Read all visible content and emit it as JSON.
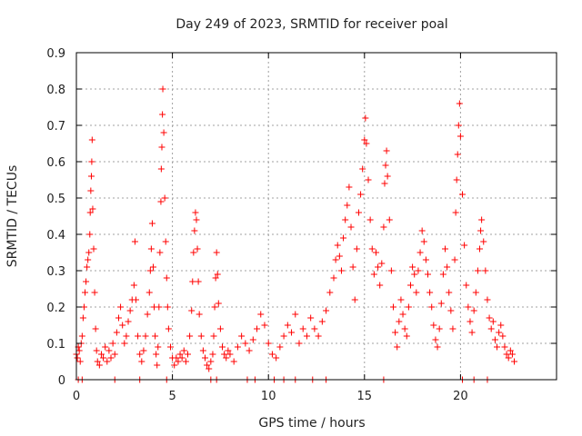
{
  "chart_data": {
    "type": "scatter",
    "title": "Day 249 of 2023, SRMTID for receiver poal",
    "xlabel": "GPS time / hours",
    "ylabel": "SRMTID / TECUs",
    "xlim": [
      0,
      25
    ],
    "ylim": [
      0,
      0.9
    ],
    "xticks": [
      0,
      5,
      10,
      15,
      20
    ],
    "yticks": [
      0,
      0.1,
      0.2,
      0.3,
      0.4,
      0.5,
      0.6,
      0.7,
      0.8,
      0.9
    ],
    "xtick_labels": [
      "0",
      "5",
      "10",
      "15",
      "20"
    ],
    "ytick_labels": [
      "0",
      "0.1",
      "0.2",
      "0.3",
      "0.4",
      "0.5",
      "0.6",
      "0.7",
      "0.8",
      "0.9"
    ],
    "grid": true,
    "marker": "+",
    "color": "#ff0000",
    "series": [
      {
        "name": "SRMTID",
        "points": [
          [
            0.0,
            0.07
          ],
          [
            0.05,
            0.06
          ],
          [
            0.1,
            0.09
          ],
          [
            0.15,
            0.08
          ],
          [
            0.2,
            0.05
          ],
          [
            0.25,
            0.1
          ],
          [
            0.3,
            0.12
          ],
          [
            0.35,
            0.17
          ],
          [
            0.4,
            0.2
          ],
          [
            0.45,
            0.24
          ],
          [
            0.5,
            0.27
          ],
          [
            0.55,
            0.31
          ],
          [
            0.6,
            0.33
          ],
          [
            0.65,
            0.35
          ],
          [
            0.7,
            0.4
          ],
          [
            0.72,
            0.46
          ],
          [
            0.75,
            0.52
          ],
          [
            0.78,
            0.56
          ],
          [
            0.8,
            0.6
          ],
          [
            0.82,
            0.66
          ],
          [
            0.85,
            0.47
          ],
          [
            0.9,
            0.36
          ],
          [
            0.95,
            0.24
          ],
          [
            1.0,
            0.14
          ],
          [
            1.05,
            0.08
          ],
          [
            1.1,
            0.05
          ],
          [
            1.2,
            0.04
          ],
          [
            1.3,
            0.07
          ],
          [
            1.4,
            0.06
          ],
          [
            1.5,
            0.09
          ],
          [
            1.6,
            0.05
          ],
          [
            1.7,
            0.08
          ],
          [
            1.8,
            0.06
          ],
          [
            1.9,
            0.1
          ],
          [
            2.0,
            0.07
          ],
          [
            2.1,
            0.13
          ],
          [
            2.2,
            0.17
          ],
          [
            2.3,
            0.2
          ],
          [
            2.4,
            0.15
          ],
          [
            2.5,
            0.1
          ],
          [
            2.6,
            0.12
          ],
          [
            2.7,
            0.16
          ],
          [
            2.8,
            0.19
          ],
          [
            2.9,
            0.22
          ],
          [
            3.0,
            0.26
          ],
          [
            3.05,
            0.38
          ],
          [
            3.1,
            0.22
          ],
          [
            3.2,
            0.12
          ],
          [
            3.3,
            0.07
          ],
          [
            3.4,
            0.05
          ],
          [
            3.5,
            0.08
          ],
          [
            3.6,
            0.12
          ],
          [
            3.7,
            0.18
          ],
          [
            3.8,
            0.24
          ],
          [
            3.85,
            0.3
          ],
          [
            3.9,
            0.36
          ],
          [
            3.95,
            0.43
          ],
          [
            4.0,
            0.31
          ],
          [
            4.05,
            0.2
          ],
          [
            4.1,
            0.12
          ],
          [
            4.15,
            0.07
          ],
          [
            4.2,
            0.04
          ],
          [
            4.25,
            0.09
          ],
          [
            4.3,
            0.2
          ],
          [
            4.35,
            0.35
          ],
          [
            4.4,
            0.49
          ],
          [
            4.42,
            0.58
          ],
          [
            4.45,
            0.64
          ],
          [
            4.48,
            0.73
          ],
          [
            4.5,
            0.8
          ],
          [
            4.55,
            0.68
          ],
          [
            4.6,
            0.5
          ],
          [
            4.65,
            0.38
          ],
          [
            4.7,
            0.28
          ],
          [
            4.75,
            0.2
          ],
          [
            4.8,
            0.14
          ],
          [
            4.9,
            0.09
          ],
          [
            5.0,
            0.06
          ],
          [
            5.1,
            0.04
          ],
          [
            5.2,
            0.06
          ],
          [
            5.3,
            0.05
          ],
          [
            5.4,
            0.07
          ],
          [
            5.5,
            0.06
          ],
          [
            5.6,
            0.08
          ],
          [
            5.7,
            0.05
          ],
          [
            5.8,
            0.07
          ],
          [
            5.9,
            0.12
          ],
          [
            6.0,
            0.19
          ],
          [
            6.05,
            0.27
          ],
          [
            6.1,
            0.35
          ],
          [
            6.15,
            0.41
          ],
          [
            6.2,
            0.46
          ],
          [
            6.25,
            0.44
          ],
          [
            6.3,
            0.36
          ],
          [
            6.35,
            0.27
          ],
          [
            6.4,
            0.18
          ],
          [
            6.5,
            0.12
          ],
          [
            6.6,
            0.08
          ],
          [
            6.7,
            0.06
          ],
          [
            6.8,
            0.04
          ],
          [
            6.9,
            0.03
          ],
          [
            7.0,
            0.05
          ],
          [
            7.1,
            0.07
          ],
          [
            7.15,
            0.12
          ],
          [
            7.2,
            0.2
          ],
          [
            7.25,
            0.28
          ],
          [
            7.3,
            0.35
          ],
          [
            7.35,
            0.29
          ],
          [
            7.4,
            0.21
          ],
          [
            7.5,
            0.14
          ],
          [
            7.6,
            0.09
          ],
          [
            7.7,
            0.07
          ],
          [
            7.8,
            0.06
          ],
          [
            7.9,
            0.08
          ],
          [
            8.0,
            0.07
          ],
          [
            8.2,
            0.05
          ],
          [
            8.4,
            0.09
          ],
          [
            8.6,
            0.12
          ],
          [
            8.8,
            0.1
          ],
          [
            9.0,
            0.08
          ],
          [
            9.2,
            0.11
          ],
          [
            9.4,
            0.14
          ],
          [
            9.6,
            0.18
          ],
          [
            9.8,
            0.15
          ],
          [
            10.0,
            0.1
          ],
          [
            10.2,
            0.07
          ],
          [
            10.4,
            0.06
          ],
          [
            10.6,
            0.09
          ],
          [
            10.8,
            0.12
          ],
          [
            11.0,
            0.15
          ],
          [
            11.2,
            0.13
          ],
          [
            11.4,
            0.18
          ],
          [
            11.6,
            0.1
          ],
          [
            11.8,
            0.14
          ],
          [
            12.0,
            0.12
          ],
          [
            12.2,
            0.17
          ],
          [
            12.4,
            0.14
          ],
          [
            12.6,
            0.12
          ],
          [
            12.8,
            0.16
          ],
          [
            13.0,
            0.19
          ],
          [
            13.2,
            0.24
          ],
          [
            13.4,
            0.28
          ],
          [
            13.5,
            0.33
          ],
          [
            13.6,
            0.37
          ],
          [
            13.7,
            0.34
          ],
          [
            13.8,
            0.3
          ],
          [
            13.9,
            0.39
          ],
          [
            14.0,
            0.44
          ],
          [
            14.1,
            0.48
          ],
          [
            14.2,
            0.53
          ],
          [
            14.3,
            0.42
          ],
          [
            14.4,
            0.31
          ],
          [
            14.5,
            0.22
          ],
          [
            14.6,
            0.36
          ],
          [
            14.7,
            0.46
          ],
          [
            14.8,
            0.51
          ],
          [
            14.9,
            0.58
          ],
          [
            15.0,
            0.66
          ],
          [
            15.05,
            0.72
          ],
          [
            15.1,
            0.65
          ],
          [
            15.2,
            0.55
          ],
          [
            15.3,
            0.44
          ],
          [
            15.4,
            0.36
          ],
          [
            15.5,
            0.29
          ],
          [
            15.6,
            0.35
          ],
          [
            15.7,
            0.31
          ],
          [
            15.8,
            0.26
          ],
          [
            15.9,
            0.32
          ],
          [
            16.0,
            0.42
          ],
          [
            16.05,
            0.54
          ],
          [
            16.1,
            0.59
          ],
          [
            16.15,
            0.63
          ],
          [
            16.2,
            0.56
          ],
          [
            16.3,
            0.44
          ],
          [
            16.4,
            0.3
          ],
          [
            16.5,
            0.2
          ],
          [
            16.6,
            0.13
          ],
          [
            16.7,
            0.09
          ],
          [
            16.8,
            0.16
          ],
          [
            16.9,
            0.22
          ],
          [
            17.0,
            0.18
          ],
          [
            17.1,
            0.14
          ],
          [
            17.2,
            0.12
          ],
          [
            17.3,
            0.2
          ],
          [
            17.4,
            0.26
          ],
          [
            17.5,
            0.31
          ],
          [
            17.6,
            0.29
          ],
          [
            17.7,
            0.24
          ],
          [
            17.8,
            0.3
          ],
          [
            17.9,
            0.35
          ],
          [
            18.0,
            0.41
          ],
          [
            18.1,
            0.38
          ],
          [
            18.2,
            0.33
          ],
          [
            18.3,
            0.29
          ],
          [
            18.4,
            0.24
          ],
          [
            18.5,
            0.2
          ],
          [
            18.6,
            0.15
          ],
          [
            18.7,
            0.11
          ],
          [
            18.8,
            0.09
          ],
          [
            18.9,
            0.14
          ],
          [
            19.0,
            0.21
          ],
          [
            19.1,
            0.29
          ],
          [
            19.2,
            0.36
          ],
          [
            19.3,
            0.31
          ],
          [
            19.4,
            0.24
          ],
          [
            19.5,
            0.19
          ],
          [
            19.6,
            0.14
          ],
          [
            19.7,
            0.33
          ],
          [
            19.75,
            0.46
          ],
          [
            19.8,
            0.55
          ],
          [
            19.85,
            0.62
          ],
          [
            19.9,
            0.7
          ],
          [
            19.95,
            0.76
          ],
          [
            20.0,
            0.67
          ],
          [
            20.1,
            0.51
          ],
          [
            20.2,
            0.37
          ],
          [
            20.3,
            0.26
          ],
          [
            20.4,
            0.2
          ],
          [
            20.5,
            0.16
          ],
          [
            20.6,
            0.13
          ],
          [
            20.7,
            0.19
          ],
          [
            20.8,
            0.24
          ],
          [
            20.9,
            0.3
          ],
          [
            21.0,
            0.36
          ],
          [
            21.05,
            0.41
          ],
          [
            21.1,
            0.44
          ],
          [
            21.2,
            0.38
          ],
          [
            21.3,
            0.3
          ],
          [
            21.4,
            0.22
          ],
          [
            21.5,
            0.17
          ],
          [
            21.6,
            0.14
          ],
          [
            21.7,
            0.16
          ],
          [
            21.8,
            0.11
          ],
          [
            21.9,
            0.09
          ],
          [
            22.0,
            0.13
          ],
          [
            22.1,
            0.15
          ],
          [
            22.2,
            0.12
          ],
          [
            22.3,
            0.09
          ],
          [
            22.4,
            0.07
          ],
          [
            22.5,
            0.06
          ],
          [
            22.6,
            0.08
          ],
          [
            22.7,
            0.07
          ],
          [
            22.8,
            0.05
          ],
          [
            0.1,
            0.0
          ],
          [
            0.3,
            0.0
          ],
          [
            2.0,
            0.0
          ],
          [
            3.3,
            0.0
          ],
          [
            4.7,
            0.0
          ],
          [
            7.0,
            0.0
          ],
          [
            7.3,
            0.0
          ],
          [
            8.9,
            0.0
          ],
          [
            9.3,
            0.0
          ],
          [
            10.3,
            0.0
          ],
          [
            10.8,
            0.0
          ],
          [
            11.4,
            0.0
          ],
          [
            12.3,
            0.0
          ],
          [
            13.0,
            0.0
          ],
          [
            16.0,
            0.0
          ],
          [
            20.1,
            0.0
          ],
          [
            20.7,
            0.0
          ],
          [
            21.4,
            0.0
          ]
        ]
      }
    ]
  }
}
